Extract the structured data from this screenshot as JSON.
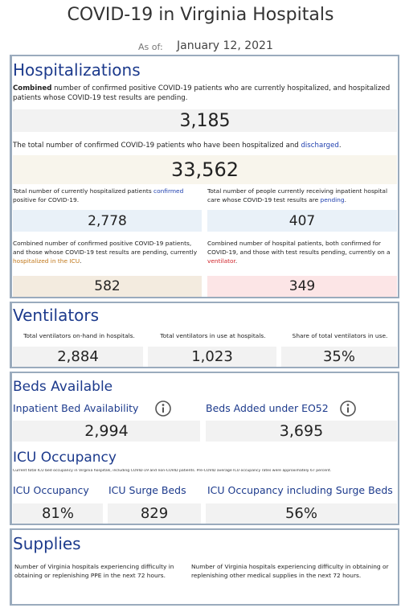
{
  "header": {
    "title": "COVID-19 in Virginia Hospitals",
    "as_of_label": "As of:",
    "as_of_date": "January 12, 2021"
  },
  "hospitalizations": {
    "heading": "Hospitalizations",
    "current": {
      "desc": [
        "Combined",
        " number of confirmed positive COVID-19 patients who are currently hospitalized, and hospitalized patients whose COVID-19 test results are pending."
      ],
      "value": "3,185"
    },
    "discharged": {
      "desc": [
        "The total number of confirmed COVID-19 patients who have been hospitalized and ",
        "discharged",
        "."
      ],
      "value": "33,562"
    },
    "confirmed": {
      "desc": [
        "Total number of currently hospitalized patients ",
        "confirmed",
        " positive for COVID-19."
      ],
      "value": "2,778"
    },
    "pending": {
      "desc": [
        "Total number of people currently receiving inpatient hospital care whose COVID-19 test results are ",
        "pending",
        "."
      ],
      "value": "407"
    },
    "icu": {
      "desc": [
        "Combined number of confirmed positive COVID-19 patients, and those whose COVID-19 test results are pending, currently ",
        "hospitalized in the ICU",
        "."
      ],
      "value": "582"
    },
    "ventilator": {
      "desc": [
        "Combined number of hospital patients, both confirmed for COVID-19, and those with test results pending, currently on a ",
        "ventilator",
        "."
      ],
      "value": "349"
    }
  },
  "ventilators": {
    "heading": "Ventilators",
    "items": [
      {
        "label": "Total ventilators on-hand in hospitals.",
        "value": "2,884"
      },
      {
        "label": "Total ventilators in use at hospitals.",
        "value": "1,023"
      },
      {
        "label": "Share of total ventilators in use.",
        "value": "35%"
      }
    ]
  },
  "beds": {
    "heading": "Beds Available",
    "items": [
      {
        "label": "Inpatient Bed Availability",
        "value": "2,994"
      },
      {
        "label": "Beds Added under EO52",
        "value": "3,695"
      }
    ]
  },
  "icu_occupancy": {
    "heading": "ICU Occupancy",
    "note": "Current total ICU bed occupancy in Virginia hospitals, including COVID-19 and non-COVID patients. Pre-COVID average ICU occupancy rates were approximately 67 percent.",
    "items": [
      {
        "label": "ICU Occupancy",
        "value": "81%"
      },
      {
        "label": "ICU Surge Beds",
        "value": "829"
      },
      {
        "label": "ICU Occupancy including Surge Beds",
        "value": "56%"
      }
    ]
  },
  "supplies": {
    "heading": "Supplies",
    "items": [
      "Number of Virginia hospitals experiencing difficulty in obtaining or replenishing PPE in the next 72 hours.",
      "Number of Virginia hospitals experiencing difficulty in obtaining or replenishing other medical supplies in the next 72 hours."
    ]
  }
}
